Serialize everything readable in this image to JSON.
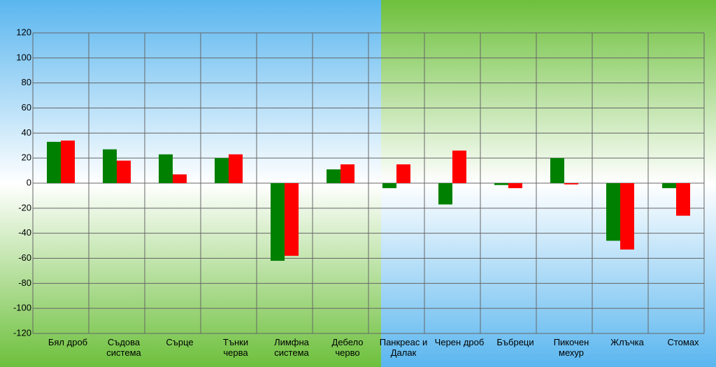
{
  "chart_data": {
    "type": "bar",
    "categories": [
      "Бял дроб",
      "Съдова\nсистема",
      "Сърце",
      "Тънки\nчерва",
      "Лимфна\nсистема",
      "Дебело\nчерво",
      "Панкреас и\nДалак",
      "Черен дроб",
      "Бъбреци",
      "Пикочен\nмехур",
      "Жлъчка",
      "Стомах"
    ],
    "series": [
      {
        "color": "#008000",
        "values": [
          33,
          27,
          23,
          20,
          -62,
          11,
          -4,
          -17,
          -1.5,
          20,
          -46,
          -4
        ]
      },
      {
        "color": "#ff0000",
        "values": [
          34,
          18,
          7,
          23,
          -58,
          15,
          15,
          26,
          -4,
          -1,
          -53,
          -26
        ]
      }
    ],
    "ylim": [
      -120,
      120
    ],
    "yticks": [
      -120,
      -100,
      -80,
      -60,
      -40,
      -20,
      0,
      20,
      40,
      60,
      80,
      100,
      120
    ],
    "grid": true
  }
}
